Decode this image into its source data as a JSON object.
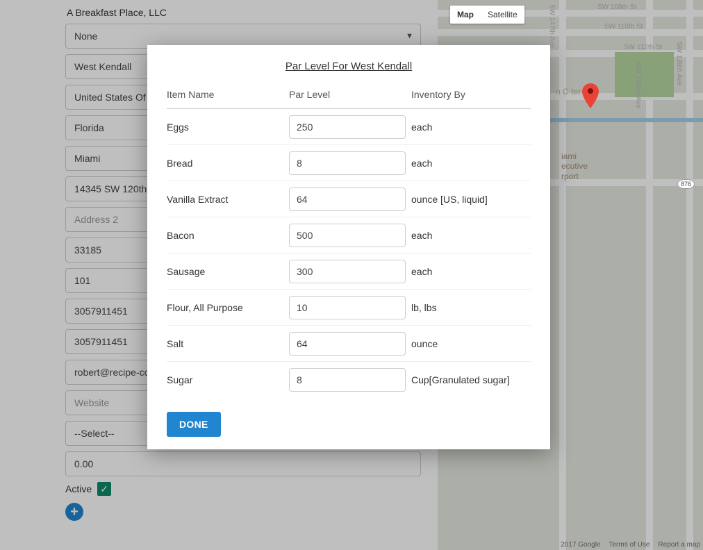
{
  "page": {
    "company_name": "A Breakfast Place, LLC"
  },
  "form": {
    "location_select": "None",
    "location_name": "West Kendall",
    "country": "United States Of",
    "state": "Florida",
    "city": "Miami",
    "address1": "14345 SW 120th",
    "address2_placeholder": "Address 2",
    "zip": "33185",
    "unit": "101",
    "phone1": "3057911451",
    "phone2": "3057911451",
    "email": "robert@recipe-co",
    "website_placeholder": "Website",
    "timezone_select": "--Select--",
    "amount": "0.00",
    "active_label": "Active",
    "active_checked": true
  },
  "map": {
    "tab_map": "Map",
    "tab_satellite": "Satellite",
    "roads": {
      "sw108": "SW 108th St",
      "sw110": "SW 110th St",
      "sw112": "SW 112th St",
      "sw142": "SW 142nd Ave",
      "sw139": "SW 139th Ave",
      "sw147": "SW 147th Ave"
    },
    "place_line1": "iami",
    "place_line2": "ecutive",
    "place_line3": "rport",
    "center_label": "n C  ter",
    "shield": "876",
    "attrib_year": "2017 Google",
    "attrib_terms": "Terms of Use",
    "attrib_report": "Report a map"
  },
  "modal": {
    "title": "Par Level For West Kendall",
    "headers": {
      "name": "Item Name",
      "par": "Par Level",
      "inv": "Inventory By"
    },
    "done_label": "DONE",
    "rows": [
      {
        "name": "Eggs",
        "par": "250",
        "inv": "each"
      },
      {
        "name": "Bread",
        "par": "8",
        "inv": "each"
      },
      {
        "name": "Vanilla Extract",
        "par": "64",
        "inv": "ounce [US, liquid]"
      },
      {
        "name": "Bacon",
        "par": "500",
        "inv": "each"
      },
      {
        "name": "Sausage",
        "par": "300",
        "inv": "each"
      },
      {
        "name": "Flour, All Purpose",
        "par": "10",
        "inv": "lb, lbs"
      },
      {
        "name": "Salt",
        "par": "64",
        "inv": "ounce"
      },
      {
        "name": "Sugar",
        "par": "8",
        "inv": "Cup[Granulated sugar]"
      }
    ]
  },
  "colors": {
    "accent": "#2185d0",
    "check": "#0d8a6a",
    "border": "#cccccc"
  }
}
